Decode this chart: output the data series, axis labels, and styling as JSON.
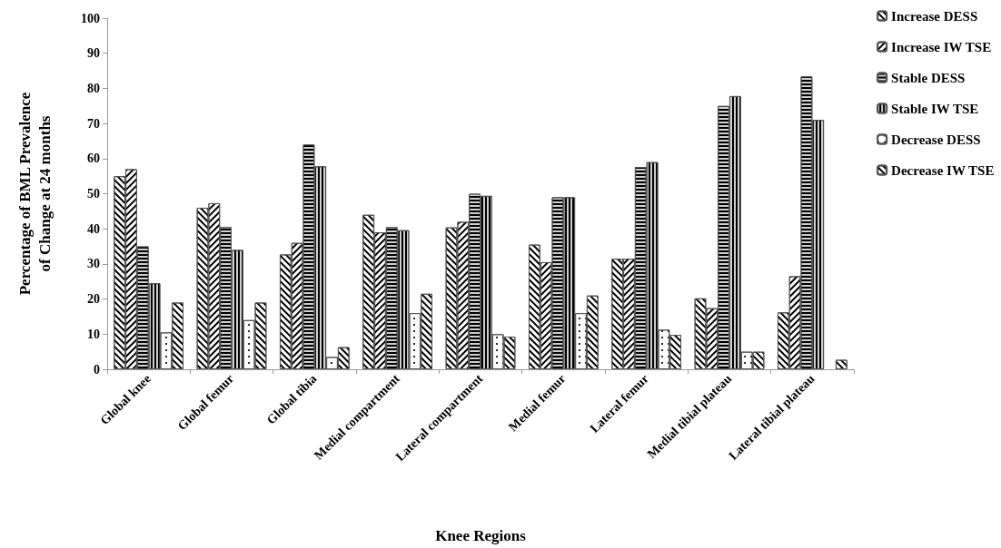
{
  "chart_data": {
    "type": "bar",
    "xlabel": "Knee Regions",
    "ylabel": "Percentage of BML Prevalence\nof Change at 24 months",
    "categories": [
      "Global knee",
      "Global femur",
      "Global tibia",
      "Medial compartment",
      "Lateral compartment",
      "Medial femur",
      "Lateral femur",
      "Medial tibial plateau",
      "Lateral tibial plateau"
    ],
    "series": [
      {
        "name": "Increase DESS",
        "color": "#ffffff",
        "values": [
          55,
          46,
          32.7,
          44,
          40.4,
          35.5,
          31.5,
          20.2,
          16.2
        ]
      },
      {
        "name": "Increase IW TSE",
        "color": "#ffffff",
        "values": [
          57,
          47.3,
          36,
          39,
          42,
          30.5,
          31.5,
          17.4,
          26.5
        ]
      },
      {
        "name": "Stable DESS",
        "color": "#d0d0d0",
        "values": [
          35,
          40.5,
          64,
          40.5,
          50,
          49,
          57.6,
          75,
          83.4
        ]
      },
      {
        "name": "Stable IW TSE",
        "color": "#d0d0d0",
        "values": [
          24.5,
          34,
          57.8,
          39.6,
          49.4,
          49,
          59,
          77.8,
          71
        ]
      },
      {
        "name": "Decrease DESS",
        "color": "#ffffff",
        "values": [
          10.5,
          14,
          3.5,
          16,
          10,
          16,
          11.3,
          5,
          0
        ]
      },
      {
        "name": "Decrease IW TSE",
        "color": "#ffffff",
        "values": [
          19,
          19,
          6.3,
          21.5,
          9.3,
          21,
          9.8,
          5,
          2.7
        ]
      }
    ],
    "ylim": [
      0,
      100
    ],
    "yticks": [
      0,
      10,
      20,
      30,
      40,
      50,
      60,
      70,
      80,
      90,
      100
    ],
    "grid": false,
    "legend": "top right"
  }
}
